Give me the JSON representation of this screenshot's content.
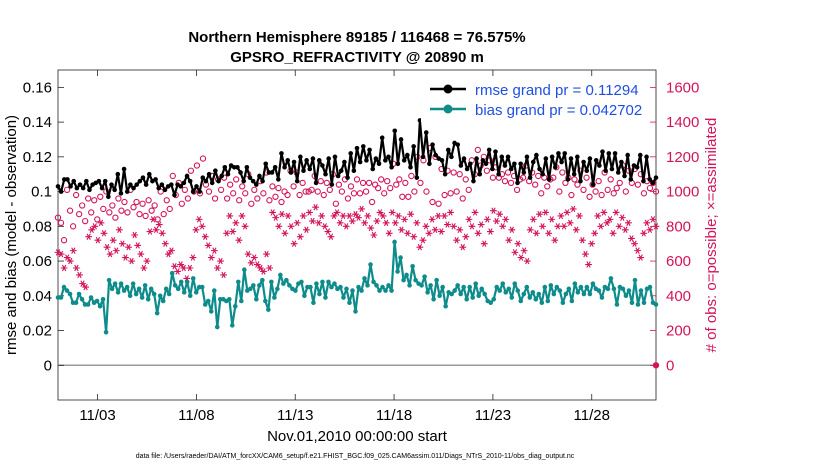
{
  "chart_data": {
    "type": "line",
    "title": "Northern Hemisphere 89185 / 116468 = 76.575%",
    "subtitle": "GPSRO_REFRACTIVITY @ 20890 m",
    "xlabel": "Nov.01,2010 00:00:00 start",
    "ylabel_left": "rmse and bias (model - observation)",
    "ylabel_right": "# of obs: o=possible; ×=assimilated",
    "footnote": "data file: /Users/raeder/DAI/ATM_forcXX/CAM6_setup/f.e21.FHIST_BGC.f09_025.CAM6assim.011/Diags_NTrS_2010-11/obs_diag_output.nc",
    "x_range_days": [
      1.0,
      31.25
    ],
    "x_ticks": [
      {
        "day": 3,
        "label": "11/03"
      },
      {
        "day": 8,
        "label": "11/08"
      },
      {
        "day": 13,
        "label": "11/13"
      },
      {
        "day": 18,
        "label": "11/18"
      },
      {
        "day": 23,
        "label": "11/23"
      },
      {
        "day": 28,
        "label": "11/28"
      }
    ],
    "ylim_left": [
      -0.02,
      0.17
    ],
    "yticks_left": [
      "0",
      "0.02",
      "0.04",
      "0.06",
      "0.08",
      "0.1",
      "0.12",
      "0.14",
      "0.16"
    ],
    "ytick_values_left": [
      0,
      0.02,
      0.04,
      0.06,
      0.08,
      0.1,
      0.12,
      0.14,
      0.16
    ],
    "ylim_right": [
      -200,
      1700
    ],
    "yticks_right": [
      "0",
      "200",
      "400",
      "600",
      "800",
      "1000",
      "1200",
      "1400",
      "1600"
    ],
    "ytick_values_right": [
      0,
      200,
      400,
      600,
      800,
      1000,
      1200,
      1400,
      1600
    ],
    "zero_line": true,
    "legend_position": "top-right",
    "series": [
      {
        "name": "rmse grand pr = 0.11294",
        "axis": "left",
        "color": "#000000",
        "marker": "dot",
        "values": [
          0.103,
          0.1,
          0.107,
          0.107,
          0.103,
          0.106,
          0.102,
          0.104,
          0.102,
          0.106,
          0.101,
          0.104,
          0.105,
          0.106,
          0.102,
          0.106,
          0.097,
          0.104,
          0.101,
          0.11,
          0.099,
          0.113,
          0.1,
          0.104,
          0.102,
          0.104,
          0.106,
          0.108,
          0.104,
          0.11,
          0.106,
          0.107,
          0.102,
          0.104,
          0.101,
          0.103,
          0.104,
          0.098,
          0.104,
          0.103,
          0.105,
          0.109,
          0.106,
          0.1,
          0.103,
          0.1,
          0.108,
          0.106,
          0.11,
          0.105,
          0.112,
          0.106,
          0.109,
          0.114,
          0.11,
          0.115,
          0.114,
          0.114,
          0.111,
          0.106,
          0.114,
          0.108,
          0.106,
          0.104,
          0.109,
          0.106,
          0.116,
          0.111,
          0.111,
          0.114,
          0.107,
          0.122,
          0.114,
          0.118,
          0.111,
          0.117,
          0.106,
          0.12,
          0.112,
          0.118,
          0.113,
          0.119,
          0.105,
          0.118,
          0.115,
          0.11,
          0.119,
          0.104,
          0.12,
          0.109,
          0.112,
          0.117,
          0.108,
          0.122,
          0.112,
          0.125,
          0.117,
          0.126,
          0.118,
          0.124,
          0.113,
          0.119,
          0.116,
          0.131,
          0.118,
          0.12,
          0.114,
          0.135,
          0.116,
          0.13,
          0.118,
          0.121,
          0.114,
          0.126,
          0.108,
          0.141,
          0.12,
          0.134,
          0.116,
          0.127,
          0.121,
          0.119,
          0.118,
          0.11,
          0.124,
          0.12,
          0.128,
          0.127,
          0.115,
          0.119,
          0.113,
          0.116,
          0.106,
          0.119,
          0.11,
          0.118,
          0.116,
          0.124,
          0.113,
          0.123,
          0.11,
          0.12,
          0.115,
          0.12,
          0.113,
          0.116,
          0.105,
          0.116,
          0.111,
          0.12,
          0.108,
          0.117,
          0.121,
          0.113,
          0.11,
          0.119,
          0.107,
          0.12,
          0.114,
          0.122,
          0.117,
          0.122,
          0.107,
          0.119,
          0.11,
          0.12,
          0.106,
          0.117,
          0.112,
          0.119,
          0.104,
          0.118,
          0.115,
          0.123,
          0.112,
          0.122,
          0.113,
          0.122,
          0.111,
          0.117,
          0.109,
          0.121,
          0.107,
          0.115,
          0.114,
          0.121,
          0.106,
          0.12,
          0.107,
          0.105,
          0.108
        ]
      },
      {
        "name": "bias grand pr = 0.042702",
        "axis": "left",
        "color": "#0e8c8c",
        "marker": "dot",
        "values": [
          0.039,
          0.039,
          0.045,
          0.043,
          0.041,
          0.036,
          0.036,
          0.041,
          0.038,
          0.035,
          0.035,
          0.039,
          0.036,
          0.037,
          0.034,
          0.038,
          0.019,
          0.049,
          0.044,
          0.047,
          0.042,
          0.047,
          0.043,
          0.045,
          0.04,
          0.047,
          0.041,
          0.044,
          0.039,
          0.046,
          0.038,
          0.044,
          0.041,
          0.03,
          0.04,
          0.037,
          0.044,
          0.041,
          0.053,
          0.046,
          0.044,
          0.048,
          0.042,
          0.048,
          0.04,
          0.05,
          0.042,
          0.045,
          0.045,
          0.035,
          0.037,
          0.031,
          0.043,
          0.022,
          0.038,
          0.038,
          0.037,
          0.038,
          0.023,
          0.034,
          0.048,
          0.037,
          0.055,
          0.043,
          0.044,
          0.046,
          0.038,
          0.046,
          0.049,
          0.037,
          0.032,
          0.048,
          0.039,
          0.044,
          0.052,
          0.047,
          0.049,
          0.046,
          0.044,
          0.043,
          0.047,
          0.048,
          0.04,
          0.045,
          0.045,
          0.036,
          0.047,
          0.041,
          0.048,
          0.039,
          0.048,
          0.045,
          0.047,
          0.044,
          0.045,
          0.039,
          0.044,
          0.036,
          0.043,
          0.031,
          0.045,
          0.043,
          0.05,
          0.046,
          0.058,
          0.048,
          0.046,
          0.043,
          0.045,
          0.043,
          0.046,
          0.043,
          0.071,
          0.054,
          0.062,
          0.049,
          0.052,
          0.046,
          0.057,
          0.049,
          0.047,
          0.046,
          0.051,
          0.042,
          0.046,
          0.038,
          0.049,
          0.04,
          0.045,
          0.034,
          0.042,
          0.041,
          0.043,
          0.046,
          0.041,
          0.045,
          0.038,
          0.045,
          0.039,
          0.047,
          0.04,
          0.044,
          0.041,
          0.037,
          0.036,
          0.038,
          0.045,
          0.043,
          0.047,
          0.042,
          0.044,
          0.039,
          0.047,
          0.043,
          0.037,
          0.041,
          0.045,
          0.039,
          0.042,
          0.038,
          0.041,
          0.036,
          0.045,
          0.037,
          0.046,
          0.041,
          0.045,
          0.043,
          0.036,
          0.041,
          0.044,
          0.037,
          0.047,
          0.042,
          0.045,
          0.041,
          0.045,
          0.041,
          0.047,
          0.044,
          0.043,
          0.039,
          0.045,
          0.044,
          0.05,
          0.044,
          0.035,
          0.045,
          0.044,
          0.04,
          0.043,
          0.036,
          0.049,
          0.035,
          0.043,
          0.036,
          0.044,
          0.045,
          0.036,
          0.035
        ]
      },
      {
        "name": "possible obs",
        "axis": "right",
        "color": "#d4145a",
        "marker": "circle",
        "values": [
          850,
          820,
          720,
          1010,
          890,
          800,
          980,
          870,
          920,
          830,
          960,
          880,
          950,
          840,
          970,
          900,
          1000,
          880,
          920,
          850,
          960,
          890,
          940,
          880,
          1010,
          910,
          940,
          870,
          930,
          860,
          950,
          890,
          920,
          840,
          1000,
          870,
          950,
          900,
          1090,
          980,
          1050,
          930,
          1010,
          960,
          1120,
          1000,
          1150,
          990,
          1190,
          1040,
          1000,
          1090,
          960,
          1070,
          1010,
          1080,
          960,
          1040,
          990,
          1070,
          950,
          1030,
          990,
          1100,
          930,
          1010,
          960,
          1060,
          990,
          1110,
          950,
          1030,
          970,
          1020,
          940,
          1000,
          980,
          1120,
          1030,
          1110,
          980,
          1050,
          1000,
          1000,
          1010,
          1090,
          1000,
          1060,
          980,
          1050,
          1010,
          1100,
          930,
          1040,
          1000,
          1070,
          960,
          1030,
          990,
          1070,
          990,
          1050,
          1000,
          1050,
          940,
          1040,
          1020,
          1070,
          990,
          1060,
          1020,
          1160,
          1040,
          1070,
          970,
          1050,
          970,
          1090,
          1000,
          1200,
          1050,
          1180,
          1000,
          1250,
          940,
          1200,
          930,
          1130,
          980,
          1120,
          990,
          1110,
          1000,
          1100,
          960,
          1070,
          1010,
          1180,
          1100,
          1240,
          1150,
          1200,
          1120,
          1180,
          1080,
          1140,
          1080,
          1100,
          1060,
          1110,
          1050,
          1090,
          1010,
          1070,
          1080,
          1150,
          1060,
          1110,
          1040,
          1090,
          990,
          1080,
          1030,
          1070,
          1080,
          1140,
          1000,
          1110,
          1050,
          1080,
          980,
          1070,
          1040,
          1120,
          1010,
          1080,
          970,
          1040,
          1000,
          1060,
          980,
          1110,
          1010,
          1070,
          990,
          1020,
          1050,
          1150,
          1000,
          1120,
          1050,
          1130,
          1040,
          1100,
          990,
          1060,
          1020,
          1050,
          1000
        ]
      },
      {
        "name": "assimilated obs",
        "axis": "right",
        "color": "#d4145a",
        "marker": "star",
        "values": [
          650,
          640,
          560,
          620,
          600,
          660,
          560,
          520,
          470,
          450,
          740,
          780,
          800,
          720,
          820,
          760,
          680,
          640,
          720,
          660,
          780,
          700,
          620,
          680,
          600,
          750,
          690,
          640,
          560,
          600,
          770,
          840,
          780,
          810,
          760,
          700,
          640,
          660,
          570,
          540,
          580,
          560,
          500,
          560,
          620,
          780,
          840,
          800,
          740,
          690,
          620,
          660,
          560,
          600,
          520,
          760,
          860,
          770,
          820,
          720,
          860,
          800,
          640,
          590,
          620,
          580,
          560,
          540,
          640,
          560,
          880,
          850,
          800,
          870,
          760,
          860,
          800,
          700,
          820,
          740,
          860,
          780,
          880,
          830,
          910,
          820,
          860,
          800,
          770,
          740,
          860,
          880,
          820,
          860,
          800,
          860,
          830,
          870,
          850,
          900,
          820,
          860,
          790,
          750,
          830,
          880,
          860,
          820,
          760,
          880,
          820,
          860,
          780,
          840,
          760,
          870,
          740,
          820,
          680,
          720,
          800,
          760,
          840,
          780,
          860,
          770,
          860,
          810,
          880,
          800,
          720,
          780,
          680,
          740,
          840,
          800,
          880,
          760,
          810,
          700,
          840,
          770,
          890,
          830,
          870,
          800,
          840,
          720,
          780,
          650,
          700,
          620,
          660,
          600,
          780,
          840,
          760,
          870,
          800,
          880,
          760,
          840,
          720,
          800,
          860,
          800,
          880,
          820,
          900,
          780,
          860,
          720,
          640,
          580,
          700,
          760,
          860,
          800,
          880,
          820,
          840,
          760,
          880,
          800,
          850,
          780,
          820,
          730,
          700,
          660,
          620,
          760,
          820,
          780,
          840,
          800
        ]
      }
    ]
  }
}
